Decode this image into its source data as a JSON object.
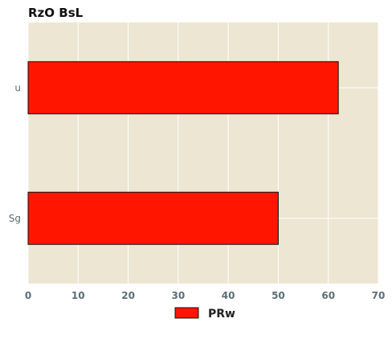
{
  "chart_data": {
    "type": "bar",
    "orientation": "horizontal",
    "title": "RzO BsL",
    "xlabel": "",
    "ylabel": "",
    "categories": [
      "u",
      "Sg"
    ],
    "series": [
      {
        "name": "PRw",
        "values": [
          62,
          50
        ]
      }
    ],
    "xlim": [
      0,
      70
    ],
    "xticks": [
      0,
      10,
      20,
      30,
      40,
      50,
      60,
      70
    ],
    "grid": true,
    "legend_position": "bottom-center",
    "colors": {
      "plot_background": "#ede6d3",
      "grid": "#ffffff",
      "bar_fill": "#ff1500",
      "bar_edge": "#111111",
      "tick_text": "#5a6e74"
    }
  }
}
